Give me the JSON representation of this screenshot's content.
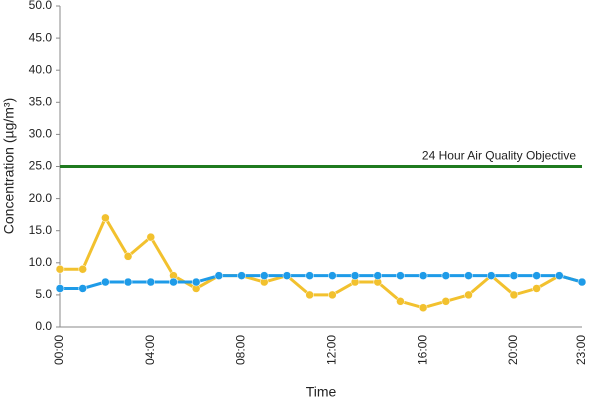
{
  "chart_data": {
    "type": "line",
    "x_label": "Time",
    "y_label": "Concentration (µg/m³)",
    "categories": [
      "00:00",
      null,
      null,
      null,
      "04:00",
      null,
      null,
      null,
      "08:00",
      null,
      null,
      null,
      "12:00",
      null,
      null,
      null,
      "16:00",
      null,
      null,
      null,
      "20:00",
      null,
      null,
      "23:00"
    ],
    "series": [
      {
        "color": "#f2c12e",
        "values": [
          9,
          9,
          17,
          11,
          14,
          8,
          6,
          8,
          8,
          7,
          8,
          5,
          5,
          7,
          7,
          4,
          3,
          4,
          5,
          8,
          5,
          6,
          8,
          7
        ]
      },
      {
        "color": "#1e9be8",
        "values": [
          6,
          6,
          7,
          7,
          7,
          7,
          7,
          8,
          8,
          8,
          8,
          8,
          8,
          8,
          8,
          8,
          8,
          8,
          8,
          8,
          8,
          8,
          8,
          7
        ]
      }
    ],
    "reference_lines": [
      {
        "value": 25,
        "label": "24 Hour Air Quality Objective",
        "color": "#1f7a1f"
      }
    ],
    "ylim": [
      0,
      50
    ],
    "yticks": [
      {
        "value": 0,
        "label": "0.0"
      },
      {
        "value": 5,
        "label": "5.0"
      },
      {
        "value": 10,
        "label": "10.0"
      },
      {
        "value": 15,
        "label": "15.0"
      },
      {
        "value": 20,
        "label": "20.0"
      },
      {
        "value": 25,
        "label": "25.0"
      },
      {
        "value": 30,
        "label": "30.0"
      },
      {
        "value": 35,
        "label": "35.0"
      },
      {
        "value": 40,
        "label": "40.0"
      },
      {
        "value": 45,
        "label": "45.0"
      },
      {
        "value": 50,
        "label": "50.0"
      }
    ],
    "grid": false
  }
}
